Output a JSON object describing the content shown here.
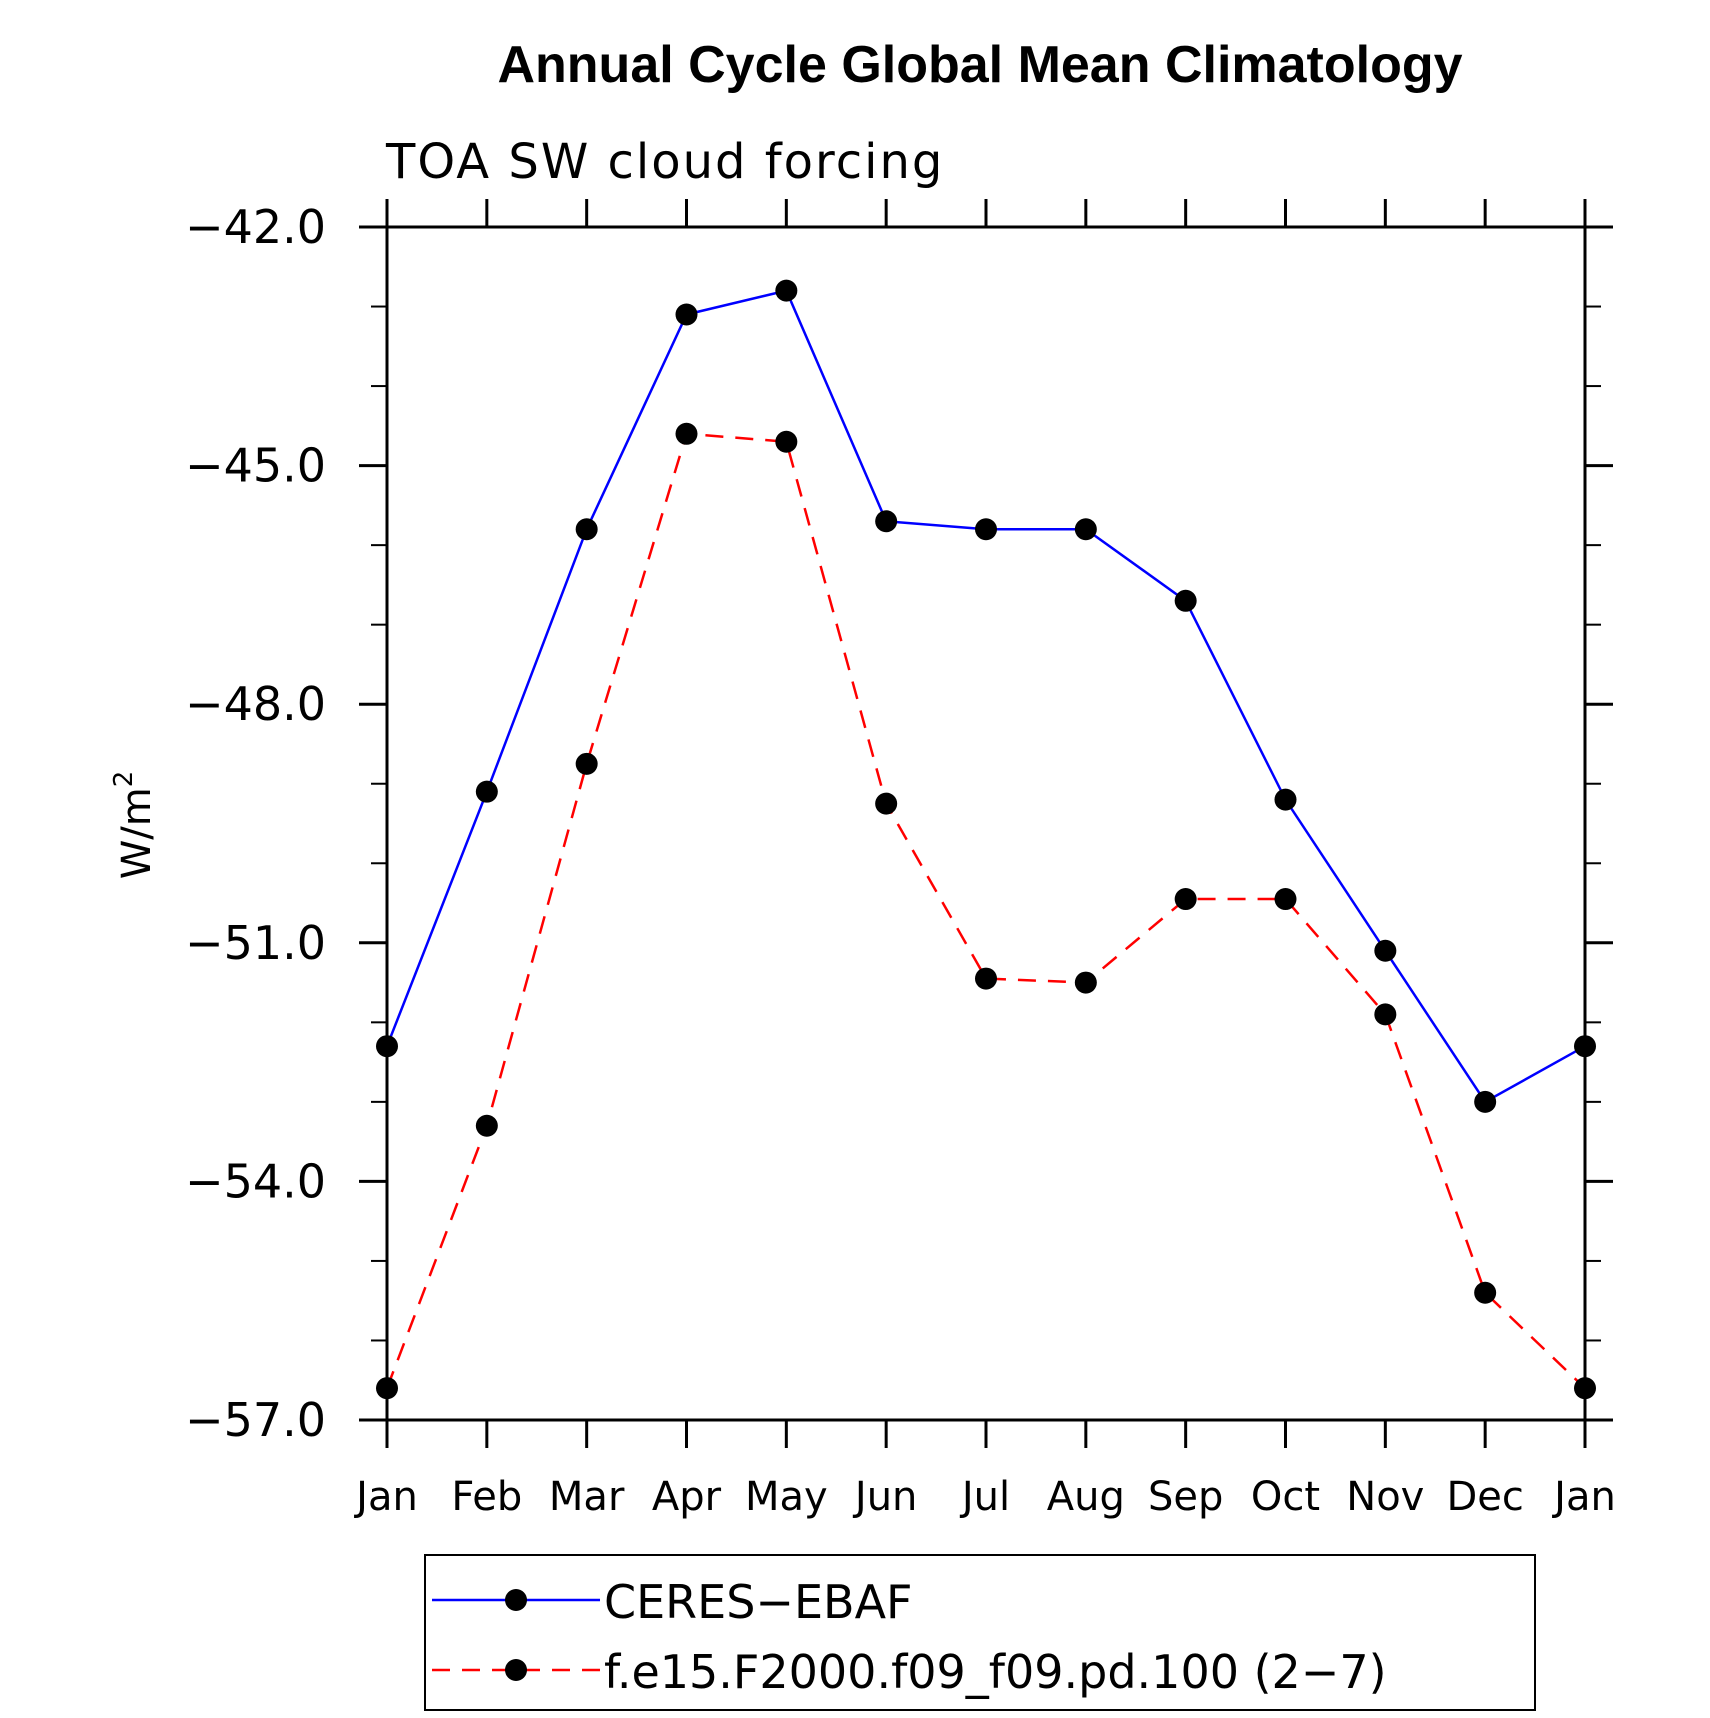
{
  "chart_data": {
    "type": "line",
    "title": "Annual Cycle Global Mean Climatology",
    "subtitle": "TOA SW cloud forcing",
    "xlabel": "",
    "ylabel": "W/m",
    "ylabel_superscript": "2",
    "categories": [
      "Jan",
      "Feb",
      "Mar",
      "Apr",
      "May",
      "Jun",
      "Jul",
      "Aug",
      "Sep",
      "Oct",
      "Nov",
      "Dec",
      "Jan"
    ],
    "ylim": [
      -57.0,
      -42.0
    ],
    "yticks": [
      -42.0,
      -45.0,
      -48.0,
      -51.0,
      -54.0,
      -57.0
    ],
    "ytick_labels": [
      "−42.0",
      "−45.0",
      "−48.0",
      "−51.0",
      "−54.0",
      "−57.0"
    ],
    "legend_position": "bottom",
    "series": [
      {
        "name": "CERES−EBAF",
        "color": "#0000ff",
        "line_style": "solid",
        "marker": "filled-circle",
        "values": [
          -52.3,
          -49.1,
          -45.8,
          -43.1,
          -42.8,
          -45.7,
          -45.8,
          -45.8,
          -46.7,
          -49.2,
          -51.1,
          -53.0,
          -52.3
        ]
      },
      {
        "name": "f.e15.F2000.f09_f09.pd.100 (2−7)",
        "color": "#ff0000",
        "line_style": "dashed",
        "marker": "filled-circle",
        "values": [
          -56.6,
          -53.3,
          -48.75,
          -44.6,
          -44.7,
          -49.25,
          -51.45,
          -51.5,
          -50.45,
          -50.45,
          -51.9,
          -55.4,
          -56.6
        ]
      }
    ]
  }
}
